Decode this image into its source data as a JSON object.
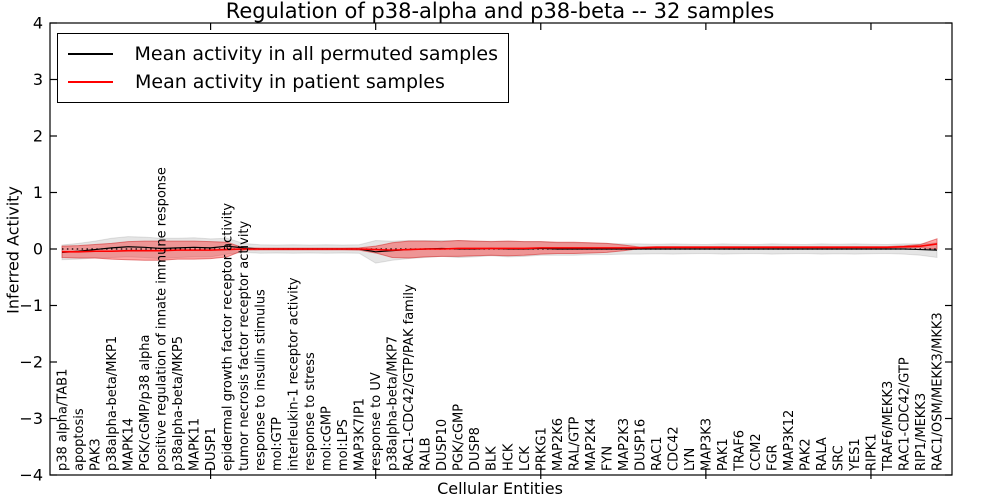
{
  "figure": {
    "title": "Regulation of p38-alpha and p38-beta -- 32 samples",
    "xlabel": "Cellular Entities",
    "ylabel": "Inferred Activity"
  },
  "legend": {
    "items": [
      {
        "label": "Mean activity in all permuted samples",
        "color": "#000000"
      },
      {
        "label": "Mean activity in patient samples",
        "color": "#ff0000"
      }
    ]
  },
  "chart_data": {
    "type": "line",
    "title": "Regulation of p38-alpha and p38-beta -- 32 samples",
    "xlabel": "Cellular Entities",
    "ylabel": "Inferred Activity",
    "ylim": [
      -4,
      4
    ],
    "yticks": [
      4,
      3,
      2,
      1,
      0,
      -1,
      -2,
      -3,
      -4
    ],
    "x_major_tick_indices": [
      9,
      19,
      29,
      39,
      49
    ],
    "grid": false,
    "legend_position": "upper left",
    "zero_line": {
      "style": "dotted",
      "color": "#000000"
    },
    "categories": [
      "p38 alpha/TAB1",
      "apoptosis",
      "PAK3",
      "p38alpha-beta/MKP1",
      "MAPK14",
      "PGK/cGMP/p38 alpha",
      "positive regulation of innate immune response",
      "p38alpha-beta/MKP5",
      "MAPK11",
      "DUSP1",
      "epidermal growth factor receptor activity",
      "tumor necrosis factor receptor activity",
      "response to insulin stimulus",
      "mol:GTP",
      "interleukin-1 receptor activity",
      "response to stress",
      "mol:cGMP",
      "mol:LPS",
      "MAP3K7IP1",
      "response to UV",
      "p38alpha-beta/MKP7",
      "RAC1-CDC42/GTP/PAK family",
      "RALB",
      "DUSP10",
      "PGK/cGMP",
      "DUSP8",
      "BLK",
      "HCK",
      "LCK",
      "PRKG1",
      "MAP2K6",
      "RAL/GTP",
      "MAP2K4",
      "FYN",
      "MAP2K3",
      "DUSP16",
      "RAC1",
      "CDC42",
      "LYN",
      "MAP3K3",
      "PAK1",
      "TRAF6",
      "CCM2",
      "FGR",
      "MAP3K12",
      "PAK2",
      "RALA",
      "SRC",
      "YES1",
      "RIPK1",
      "TRAF6/MEKK3",
      "RAC1-CDC42/GTP",
      "RIP1/MEKK3",
      "RAC1/OSM/MEKK3/MKK3"
    ],
    "series": [
      {
        "name": "Mean activity in all permuted samples",
        "color": "#000000",
        "band_fill": "rgba(0,0,0,0.10)",
        "band_edge": "rgba(0,0,0,0.10)",
        "values": [
          -0.06,
          -0.04,
          -0.01,
          0.02,
          0.04,
          0.03,
          0.01,
          0.02,
          0.03,
          0.02,
          0.05,
          0.02,
          0.0,
          0.0,
          0.0,
          0.0,
          0.0,
          0.0,
          0.0,
          -0.05,
          -0.03,
          -0.01,
          0.0,
          0.01,
          0.0,
          0.0,
          0.01,
          0.0,
          0.0,
          0.01,
          0.0,
          0.0,
          0.0,
          0.0,
          0.0,
          0.0,
          0.0,
          0.0,
          0.0,
          0.0,
          0.0,
          0.0,
          0.0,
          0.0,
          0.0,
          0.0,
          0.0,
          0.0,
          0.0,
          0.0,
          0.0,
          0.0,
          -0.01,
          -0.02
        ],
        "band_halfwidth": [
          0.13,
          0.14,
          0.15,
          0.17,
          0.18,
          0.18,
          0.18,
          0.17,
          0.17,
          0.16,
          0.14,
          0.08,
          0.075,
          0.07,
          0.075,
          0.07,
          0.075,
          0.07,
          0.075,
          0.2,
          0.17,
          0.16,
          0.15,
          0.14,
          0.15,
          0.14,
          0.13,
          0.14,
          0.13,
          0.12,
          0.11,
          0.11,
          0.1,
          0.1,
          0.09,
          0.09,
          0.085,
          0.09,
          0.085,
          0.08,
          0.09,
          0.085,
          0.08,
          0.09,
          0.085,
          0.08,
          0.09,
          0.085,
          0.09,
          0.085,
          0.08,
          0.09,
          0.1,
          0.13
        ]
      },
      {
        "name": "Mean activity in patient samples",
        "color": "#ff0000",
        "band_fill": "rgba(255,0,0,0.35)",
        "band_edge": "rgba(210,40,40,0.55)",
        "values": [
          -0.05,
          -0.05,
          -0.04,
          -0.04,
          -0.03,
          -0.03,
          -0.03,
          -0.02,
          -0.02,
          -0.02,
          -0.01,
          0.0,
          0.0,
          0.0,
          0.0,
          0.0,
          0.0,
          0.0,
          0.0,
          -0.01,
          -0.02,
          -0.01,
          0.0,
          0.0,
          0.01,
          0.01,
          0.01,
          0.01,
          0.01,
          0.02,
          0.02,
          0.02,
          0.02,
          0.02,
          0.02,
          0.02,
          0.03,
          0.03,
          0.03,
          0.03,
          0.03,
          0.03,
          0.03,
          0.03,
          0.03,
          0.03,
          0.03,
          0.03,
          0.03,
          0.03,
          0.03,
          0.04,
          0.05,
          0.09
        ],
        "band_halfwidth": [
          0.1,
          0.11,
          0.12,
          0.14,
          0.16,
          0.17,
          0.17,
          0.16,
          0.16,
          0.15,
          0.13,
          0.02,
          0.015,
          0.015,
          0.015,
          0.015,
          0.015,
          0.015,
          0.02,
          0.06,
          0.13,
          0.15,
          0.14,
          0.13,
          0.14,
          0.13,
          0.12,
          0.13,
          0.12,
          0.11,
          0.1,
          0.1,
          0.09,
          0.08,
          0.05,
          0.015,
          0.012,
          0.012,
          0.012,
          0.012,
          0.012,
          0.012,
          0.012,
          0.012,
          0.012,
          0.012,
          0.012,
          0.012,
          0.012,
          0.012,
          0.012,
          0.015,
          0.03,
          0.09
        ]
      }
    ]
  }
}
